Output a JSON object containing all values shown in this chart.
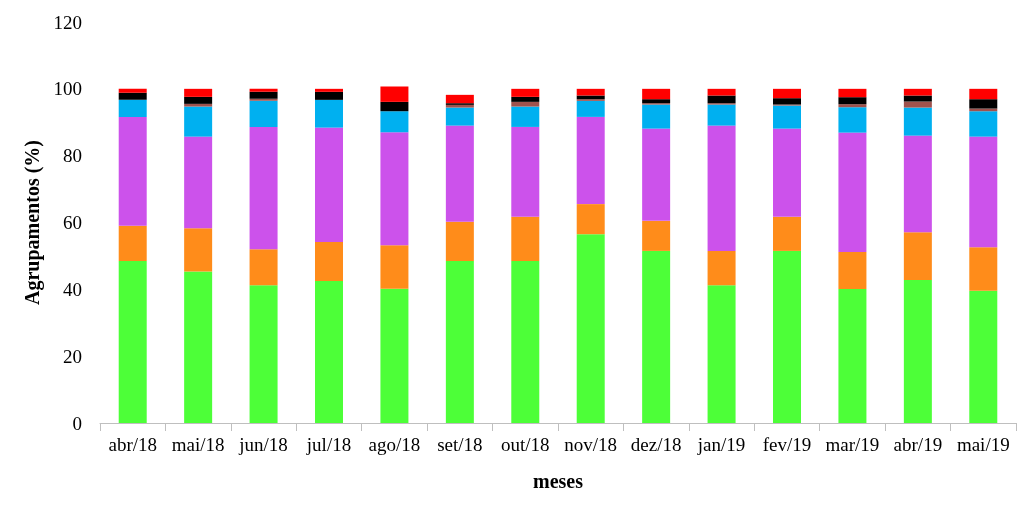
{
  "chart_data": {
    "type": "bar",
    "stacked": true,
    "xlabel": "meses",
    "ylabel": "Agrupamentos (%)",
    "categories": [
      "abr/18",
      "mai/18",
      "jun/18",
      "jul/18",
      "ago/18",
      "set/18",
      "out/18",
      "nov/18",
      "dez/18",
      "jan/19",
      "fev/19",
      "mar/19",
      "abr/19",
      "mai/19"
    ],
    "series": [
      {
        "color": "#4dff38",
        "values": [
          48.5,
          45.3,
          41.2,
          42.5,
          40.2,
          48.5,
          48.5,
          56.5,
          51.5,
          41.2,
          51.5,
          40.1,
          42.8,
          39.6
        ]
      },
      {
        "color": "#ff8c1a",
        "values": [
          10.5,
          13,
          10.8,
          11.7,
          13,
          11.7,
          13.2,
          9,
          9,
          10.3,
          10.2,
          11.1,
          14.3,
          13
        ]
      },
      {
        "color": "#cc52eb",
        "values": [
          32.6,
          27.4,
          36.6,
          34.2,
          33.8,
          28.8,
          26.9,
          26.1,
          27.6,
          37.5,
          26.4,
          35.7,
          28.9,
          33.1
        ]
      },
      {
        "color": "#00b0f0",
        "values": [
          5.1,
          9,
          7.8,
          8.3,
          6.3,
          5.4,
          6.1,
          4.8,
          7.2,
          6.3,
          6.9,
          7.6,
          8.4,
          7.6
        ]
      },
      {
        "color": "#a0524d",
        "values": [
          0,
          0.8,
          0.6,
          0,
          0,
          0.8,
          1.4,
          0.5,
          0.4,
          0.4,
          0.3,
          0.9,
          1.8,
          0.8
        ]
      },
      {
        "color": "#000000",
        "values": [
          2.1,
          2.1,
          2.1,
          2.4,
          2.8,
          0.5,
          1.5,
          1.1,
          1.2,
          2.3,
          1.9,
          2.1,
          1.8,
          2.8
        ]
      },
      {
        "color": "#ff0000",
        "values": [
          1.2,
          2.4,
          0.9,
          0.9,
          4.6,
          2.5,
          2.4,
          2,
          3.1,
          2,
          2.8,
          2.5,
          2,
          3.1
        ]
      }
    ],
    "ylim": [
      0,
      120
    ],
    "yticks": [
      0,
      20,
      40,
      60,
      80,
      100,
      120
    ],
    "grid": false
  }
}
